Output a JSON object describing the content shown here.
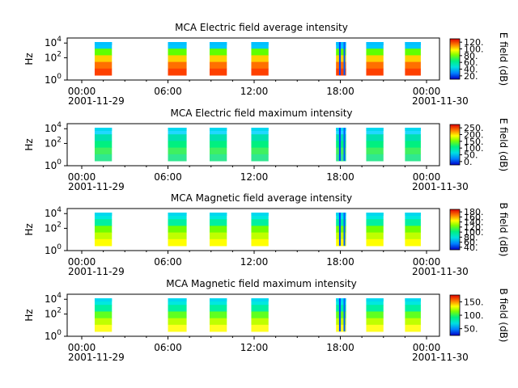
{
  "chart_data": [
    {
      "type": "heatmap",
      "title": "MCA  Electric field average intensity",
      "ylabel": "Hz",
      "y_scale": "log",
      "y_ticks": [
        "10^0",
        "10^2",
        "10^4"
      ],
      "x_ticks": [
        "00:00",
        "06:00",
        "12:00",
        "18:00",
        "00:00"
      ],
      "x_start_date": "2001-11-29",
      "x_end_date": "2001-11-30",
      "colorbar": {
        "label": "E field (dB)",
        "ticks": [
          "20.",
          "40.",
          "60.",
          "80.",
          "100.",
          "120."
        ]
      },
      "data_blocks_hours": [
        [
          0.9,
          2.1
        ],
        [
          6.0,
          7.3
        ],
        [
          8.9,
          10.1
        ],
        [
          11.8,
          13.0
        ],
        [
          17.7,
          18.4
        ],
        [
          19.8,
          21.0
        ],
        [
          22.5,
          23.6
        ]
      ]
    },
    {
      "type": "heatmap",
      "title": "MCA  Electric field maximum intensity",
      "ylabel": "Hz",
      "y_scale": "log",
      "y_ticks": [
        "10^0",
        "10^2",
        "10^4"
      ],
      "x_ticks": [
        "00:00",
        "06:00",
        "12:00",
        "18:00",
        "00:00"
      ],
      "x_start_date": "2001-11-29",
      "x_end_date": "2001-11-30",
      "colorbar": {
        "label": "E field (dB)",
        "ticks": [
          "0.",
          "50.",
          "100.",
          "150.",
          "200.",
          "250."
        ]
      },
      "data_blocks_hours": [
        [
          0.9,
          2.1
        ],
        [
          6.0,
          7.3
        ],
        [
          8.9,
          10.1
        ],
        [
          11.8,
          13.0
        ],
        [
          17.7,
          18.4
        ],
        [
          19.8,
          21.0
        ],
        [
          22.5,
          23.6
        ]
      ]
    },
    {
      "type": "heatmap",
      "title": "MCA  Magnetic field average intensity",
      "ylabel": "Hz",
      "y_scale": "log",
      "y_ticks": [
        "10^0",
        "10^2",
        "10^4"
      ],
      "x_ticks": [
        "00:00",
        "06:00",
        "12:00",
        "18:00",
        "00:00"
      ],
      "x_start_date": "2001-11-29",
      "x_end_date": "2001-11-30",
      "colorbar": {
        "label": "B field (dB)",
        "ticks": [
          "40.",
          "60.",
          "80.",
          "100.",
          "120.",
          "140.",
          "160.",
          "180."
        ]
      },
      "data_blocks_hours": [
        [
          0.9,
          2.1
        ],
        [
          6.0,
          7.3
        ],
        [
          8.9,
          10.1
        ],
        [
          11.8,
          13.0
        ],
        [
          17.7,
          18.4
        ],
        [
          19.8,
          21.0
        ],
        [
          22.5,
          23.6
        ]
      ]
    },
    {
      "type": "heatmap",
      "title": "MCA  Magnetic field maximum intensity",
      "ylabel": "Hz",
      "y_scale": "log",
      "y_ticks": [
        "10^0",
        "10^2",
        "10^4"
      ],
      "x_ticks": [
        "00:00",
        "06:00",
        "12:00",
        "18:00",
        "00:00"
      ],
      "x_start_date": "2001-11-29",
      "x_end_date": "2001-11-30",
      "colorbar": {
        "label": "B field (dB)",
        "ticks": [
          "50.",
          "100.",
          "150."
        ]
      },
      "data_blocks_hours": [
        [
          0.9,
          2.1
        ],
        [
          6.0,
          7.3
        ],
        [
          8.9,
          10.1
        ],
        [
          11.8,
          13.0
        ],
        [
          17.7,
          18.4
        ],
        [
          19.8,
          21.0
        ],
        [
          22.5,
          23.6
        ]
      ]
    }
  ]
}
